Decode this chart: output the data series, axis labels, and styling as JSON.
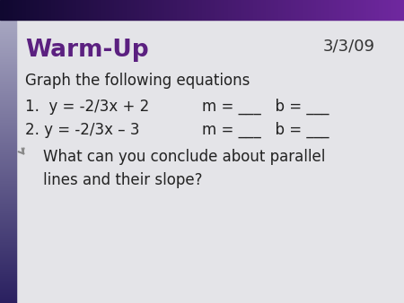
{
  "title": "Warm-Up",
  "date": "3/3/09",
  "title_color": "#5b2080",
  "body_color": "#222222",
  "bg_color": "#e4e4e8",
  "top_bar_left": "#1a1a3a",
  "top_bar_right": "#6a3090",
  "left_bar_top": "#2a2060",
  "left_bar_bottom": "#b0b0c8",
  "line1": "Graph the following equations",
  "eq1_left": "1.  y = -2/3x + 2",
  "eq1_right": "m = ___   b = ___",
  "eq2_left": "2. y = -2/3x – 3",
  "eq2_right": "m = ___   b = ___",
  "conclusion": "What can you conclude about parallel\nlines and their slope?",
  "font_family": "DejaVu Sans"
}
